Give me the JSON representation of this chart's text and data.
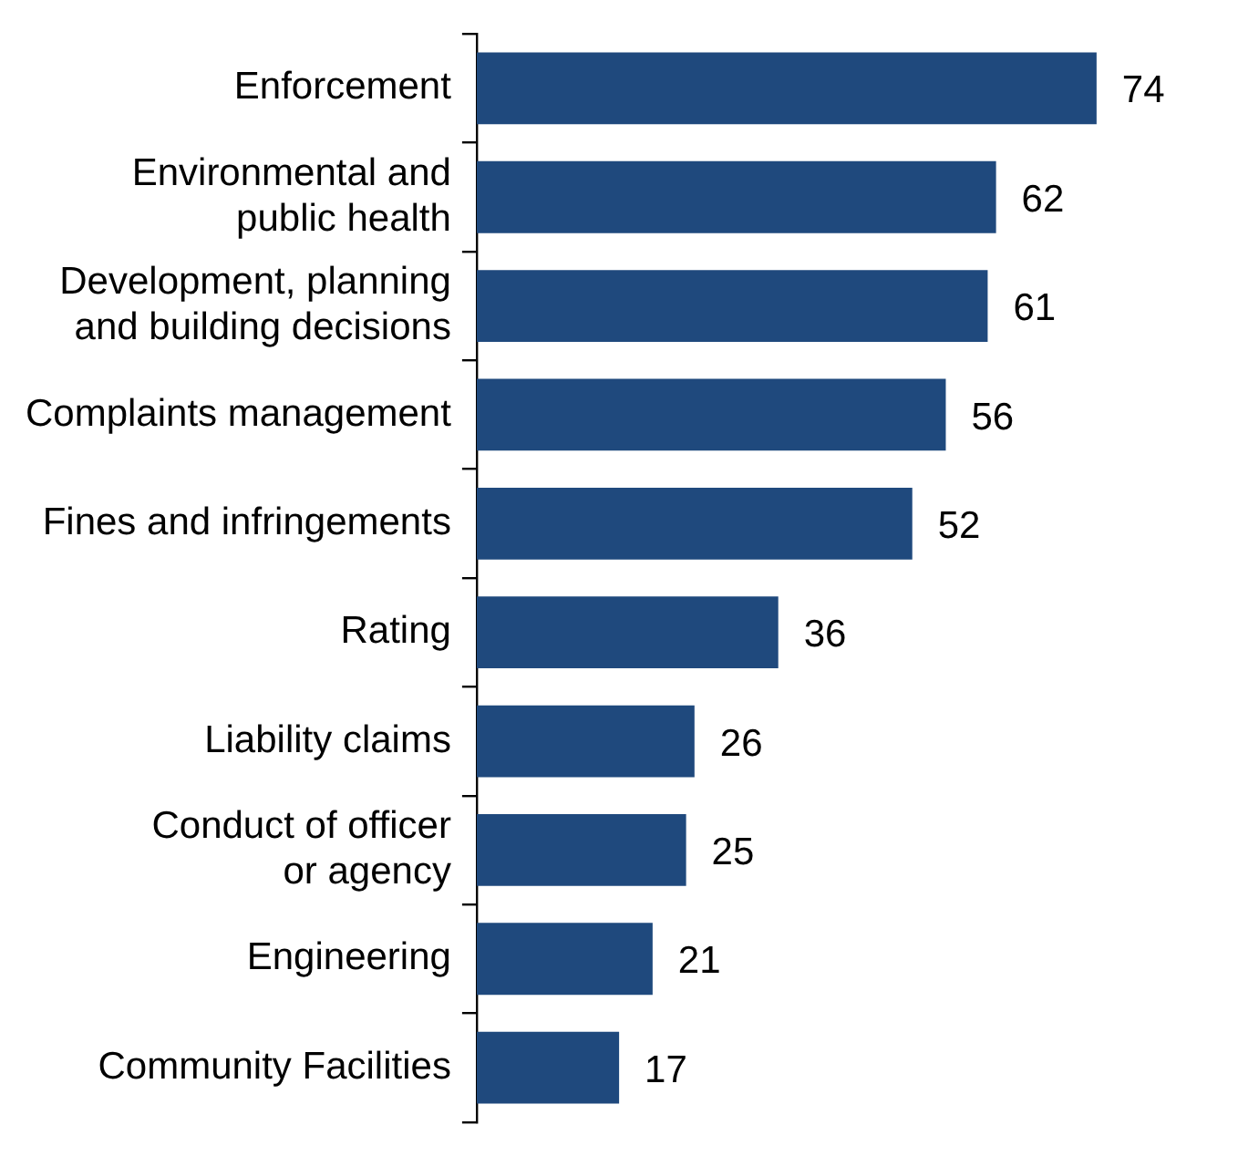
{
  "chart_data": {
    "type": "bar",
    "orientation": "horizontal",
    "categories": [
      "Enforcement",
      "Environmental and\npublic health",
      "Development, planning\nand building decisions",
      "Complaints management",
      "Fines and infringements",
      "Rating",
      "Liability claims",
      "Conduct of officer\nor agency",
      "Engineering",
      "Community Facilities"
    ],
    "values": [
      74,
      62,
      61,
      56,
      52,
      36,
      26,
      25,
      21,
      17
    ],
    "color": "#1f497d",
    "data_labels": true,
    "legend": false
  }
}
